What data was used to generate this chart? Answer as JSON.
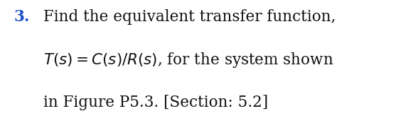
{
  "background_color": "#ffffff",
  "number_text": "3.",
  "number_color": "#1a4fc4",
  "number_fontsize": 15.5,
  "line1_text": "Find the equivalent transfer function,",
  "line2_formula": "$T(s) = C(s)/R(s)$, for the system shown",
  "line3_text": "in Figure P5.3. [Section: 5.2]",
  "body_fontsize": 15.5,
  "body_color": "#111111",
  "fig_width": 5.81,
  "fig_height": 1.81,
  "dpi": 100
}
